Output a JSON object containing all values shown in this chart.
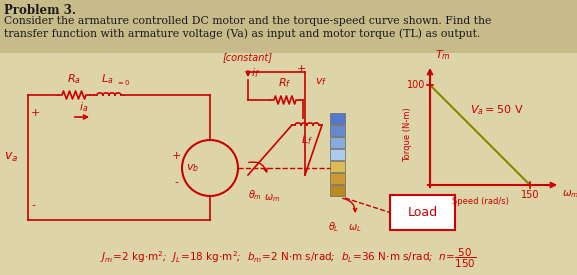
{
  "bg_color": "#ddd4a8",
  "header_bg": "#c8bb8a",
  "text_color_dark": "#1a1a1a",
  "red": "#cc0000",
  "olive": "#7a7a00",
  "title": "Problem 3.",
  "description_line1": "Consider the armature controlled DC motor and the torque-speed curve shown. Find the",
  "description_line2": "transfer function with armature voltage (Va) as input and motor torque (TL) as output.",
  "gear_colors": [
    "#5577cc",
    "#6688cc",
    "#88aadd",
    "#aaccee",
    "#ddbb55",
    "#cc9933",
    "#bb8822"
  ],
  "load_bg": "#ffffff",
  "graph_line_color": "#888800",
  "footer_italic": true
}
